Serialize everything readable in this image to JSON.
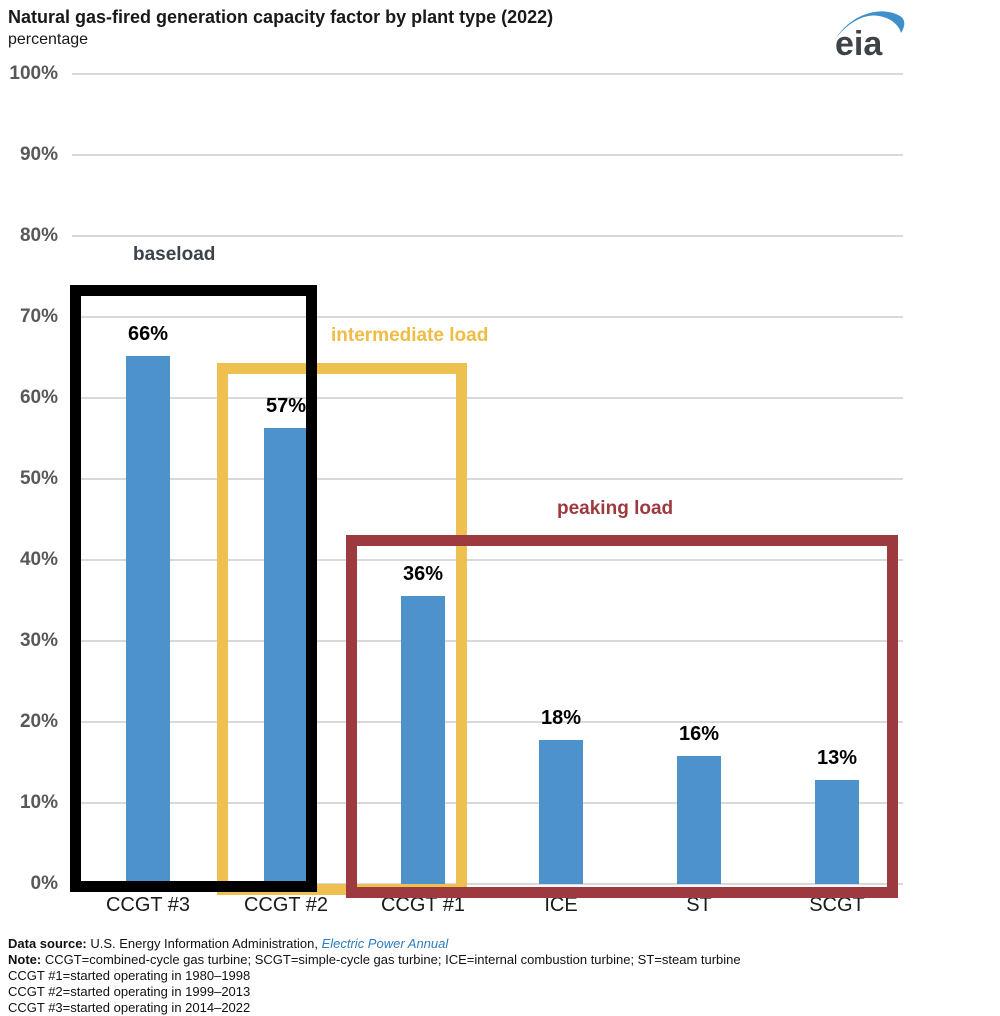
{
  "title": "Natural gas-fired generation capacity factor by plant type (2022)",
  "subtitle": "percentage",
  "logo": {
    "text": "eia"
  },
  "chart_data": {
    "type": "bar",
    "title": "Natural gas-fired generation capacity factor by plant type (2022)",
    "ylabel": "percentage",
    "xlabel": "",
    "ylim": [
      0,
      100
    ],
    "grid": true,
    "legend": "none",
    "categories": [
      "CCGT #3",
      "CCGT #2",
      "CCGT #1",
      "ICE",
      "ST",
      "SCGT"
    ],
    "values": [
      66,
      57,
      36,
      18,
      16,
      13
    ],
    "value_labels": [
      "66%",
      "57%",
      "36%",
      "18%",
      "16%",
      "13%"
    ],
    "ytick_labels": [
      "0%",
      "10%",
      "20%",
      "30%",
      "40%",
      "50%",
      "60%",
      "70%",
      "80%",
      "90%",
      "100%"
    ],
    "bar_color": "#4e92cb",
    "gridline_color": "#d9d9d9",
    "annotations": [
      {
        "label": "baseload",
        "label_color": "#3b4249",
        "box_color": "#000000",
        "covers": [
          "CCGT #3",
          "CCGT #2"
        ]
      },
      {
        "label": "intermediate load",
        "label_color": "#efbc45",
        "box_color": "#eec04f",
        "covers": [
          "CCGT #2",
          "CCGT #1"
        ]
      },
      {
        "label": "peaking load",
        "label_color": "#9d3a40",
        "box_color": "#9d3a40",
        "covers": [
          "CCGT #1",
          "ICE",
          "ST",
          "SCGT"
        ]
      }
    ]
  },
  "footer": {
    "data_source_label": "Data source:",
    "data_source_text": " U.S. Energy Information Administration, ",
    "data_source_link": "Electric Power Annual",
    "note_label": "Note:",
    "note_text": " CCGT=combined-cycle gas turbine; SCGT=simple-cycle gas turbine; ICE=internal combustion turbine; ST=steam turbine",
    "lines": [
      "CCGT #1=started operating in 1980–1998",
      "CCGT #2=started operating in 1999–2013",
      "CCGT #3=started operating in 2014–2022"
    ]
  }
}
